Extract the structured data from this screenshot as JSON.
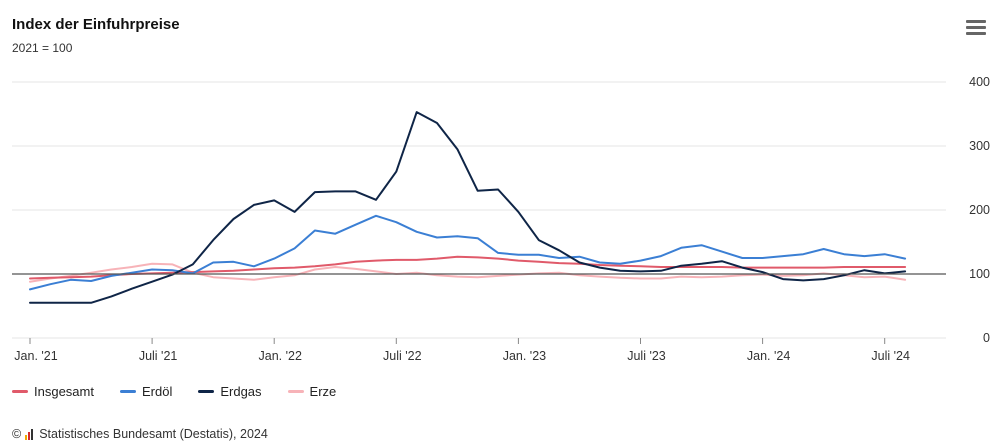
{
  "header": {
    "title": "Index der Einfuhrpreise",
    "subtitle": "2021 = 100",
    "menu_icon": "hamburger-menu-icon"
  },
  "credit": {
    "copyright_symbol": "©",
    "text": "Statistisches Bundesamt (Destatis), 2024",
    "logo_icon": "destatis-logo-icon"
  },
  "colors": {
    "Insgesamt": "#e05a6a",
    "Erdöl": "#3b7fd4",
    "Erdgas": "#0f2547",
    "Erze": "#f7b3b8",
    "baseline": "#555555",
    "grid": "#e6e6e6"
  },
  "chart_data": {
    "type": "line",
    "title": "Index der Einfuhrpreise",
    "subtitle": "2021 = 100",
    "x_start": "2021-01",
    "x_end": "2024-08",
    "x_tick_labels": [
      {
        "label": "Jan. '21",
        "month": "2021-01"
      },
      {
        "label": "Juli '21",
        "month": "2021-07"
      },
      {
        "label": "Jan. '22",
        "month": "2022-01"
      },
      {
        "label": "Juli '22",
        "month": "2022-07"
      },
      {
        "label": "Jan. '23",
        "month": "2023-01"
      },
      {
        "label": "Juli '23",
        "month": "2023-07"
      },
      {
        "label": "Jan. '24",
        "month": "2024-01"
      },
      {
        "label": "Juli '24",
        "month": "2024-07"
      }
    ],
    "ylim": [
      0,
      400
    ],
    "y_ticks": [
      0,
      100,
      200,
      300,
      400
    ],
    "y_axis_side": "right",
    "grid": true,
    "reference_line": 100,
    "legend_position": "bottom-left",
    "series": [
      {
        "name": "Insgesamt",
        "values": [
          93,
          94,
          95,
          96,
          98,
          100,
          101,
          102,
          103,
          104,
          105,
          107,
          109,
          110,
          112,
          115,
          119,
          121,
          122,
          122,
          124,
          127,
          126,
          124,
          121,
          119,
          117,
          116,
          114,
          113,
          112,
          111,
          111,
          111,
          111,
          110,
          110,
          110,
          110,
          110,
          111,
          111,
          111,
          111
        ]
      },
      {
        "name": "Erdöl",
        "values": [
          76,
          84,
          91,
          89,
          97,
          102,
          107,
          106,
          101,
          118,
          119,
          112,
          124,
          140,
          168,
          163,
          177,
          191,
          181,
          166,
          157,
          159,
          156,
          133,
          130,
          130,
          125,
          127,
          118,
          116,
          121,
          128,
          141,
          145,
          135,
          125,
          125,
          128,
          131,
          139,
          131,
          128,
          131,
          124
        ]
      },
      {
        "name": "Erdgas",
        "values": [
          55,
          55,
          55,
          55,
          65,
          77,
          88,
          99,
          115,
          153,
          186,
          208,
          215,
          197,
          228,
          229,
          229,
          216,
          260,
          353,
          336,
          295,
          230,
          232,
          197,
          153,
          137,
          118,
          110,
          105,
          104,
          105,
          113,
          116,
          120,
          110,
          103,
          92,
          90,
          92,
          98,
          106,
          101,
          104
        ]
      },
      {
        "name": "Erze",
        "values": [
          88,
          93,
          97,
          102,
          107,
          111,
          116,
          115,
          102,
          95,
          93,
          91,
          95,
          98,
          107,
          111,
          108,
          104,
          100,
          102,
          98,
          96,
          95,
          97,
          99,
          101,
          102,
          98,
          96,
          94,
          93,
          93,
          96,
          95,
          96,
          98,
          99,
          97,
          98,
          101,
          98,
          95,
          96,
          91
        ]
      }
    ]
  }
}
